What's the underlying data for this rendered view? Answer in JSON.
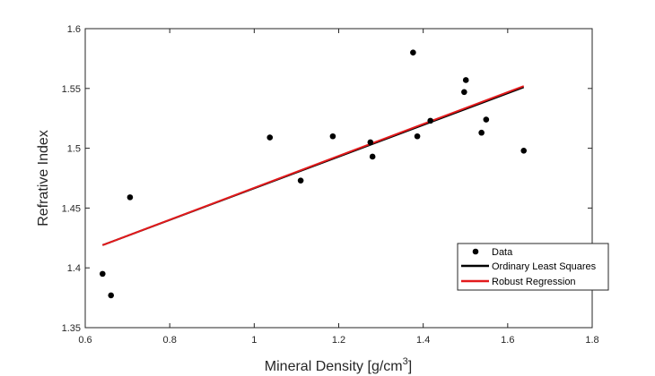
{
  "chart_data": {
    "type": "scatter",
    "xlabel": "Mineral Density [g/cm",
    "xlabel_sup": "3",
    "xlabel_close": "]",
    "ylabel": "Refrative Index",
    "xlim": [
      0.6,
      1.8
    ],
    "ylim": [
      1.35,
      1.6
    ],
    "xticks": [
      0.6,
      0.8,
      1.0,
      1.2,
      1.4,
      1.6,
      1.8
    ],
    "xtick_labels": [
      "0.6",
      "0.8",
      "1",
      "1.2",
      "1.4",
      "1.6",
      "1.8"
    ],
    "yticks": [
      1.35,
      1.4,
      1.45,
      1.5,
      1.55,
      1.6
    ],
    "ytick_labels": [
      "1.35",
      "1.4",
      "1.45",
      "1.5",
      "1.55",
      "1.6"
    ],
    "grid": false,
    "legend_position": "lower-right",
    "series": [
      {
        "name": "Data",
        "kind": "scatter",
        "color": "#000000",
        "points": [
          {
            "x": 0.641,
            "y": 1.395
          },
          {
            "x": 0.661,
            "y": 1.377
          },
          {
            "x": 0.706,
            "y": 1.459
          },
          {
            "x": 1.037,
            "y": 1.509
          },
          {
            "x": 1.11,
            "y": 1.473
          },
          {
            "x": 1.186,
            "y": 1.51
          },
          {
            "x": 1.275,
            "y": 1.505
          },
          {
            "x": 1.28,
            "y": 1.493
          },
          {
            "x": 1.376,
            "y": 1.58
          },
          {
            "x": 1.386,
            "y": 1.51
          },
          {
            "x": 1.417,
            "y": 1.523
          },
          {
            "x": 1.497,
            "y": 1.547
          },
          {
            "x": 1.501,
            "y": 1.557
          },
          {
            "x": 1.538,
            "y": 1.513
          },
          {
            "x": 1.549,
            "y": 1.524
          },
          {
            "x": 1.638,
            "y": 1.498
          }
        ]
      },
      {
        "name": "Ordinary Least Squares",
        "kind": "line",
        "color": "#000000",
        "points": [
          {
            "x": 0.641,
            "y": 1.419
          },
          {
            "x": 1.638,
            "y": 1.551
          }
        ]
      },
      {
        "name": "Robust Regression",
        "kind": "line",
        "color": "#e31a1c",
        "points": [
          {
            "x": 0.641,
            "y": 1.419
          },
          {
            "x": 1.638,
            "y": 1.552
          }
        ]
      }
    ]
  }
}
